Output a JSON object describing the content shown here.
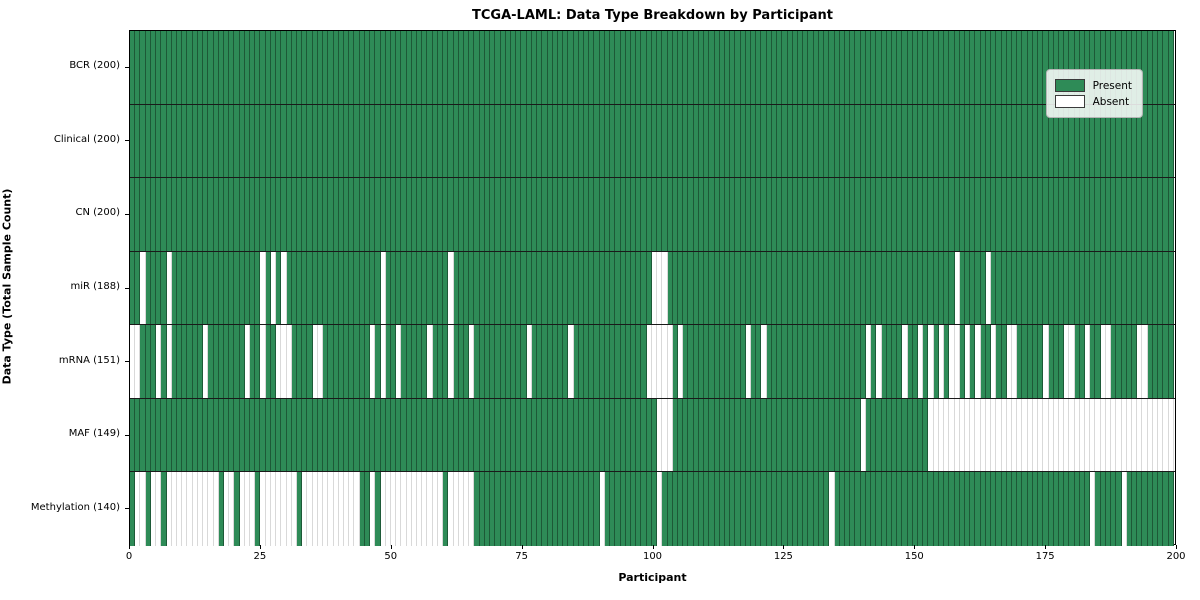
{
  "title": "TCGA-LAML: Data Type Breakdown by Participant",
  "xlabel": "Participant",
  "ylabel": "Data Type (Total Sample Count)",
  "legend": {
    "present_label": "Present",
    "absent_label": "Absent"
  },
  "colors": {
    "present": "#2e8b57",
    "absent": "#ffffff",
    "grid_on_present": "#1d5937",
    "grid_on_absent": "#d9d9d9",
    "row_divider": "#1a1a1a",
    "plot_border": "#000000"
  },
  "x_ticks": [
    0,
    25,
    50,
    75,
    100,
    125,
    150,
    175,
    200
  ],
  "chart_data": {
    "type": "heatmap",
    "title": "TCGA-LAML: Data Type Breakdown by Participant",
    "xlabel": "Participant",
    "ylabel": "Data Type (Total Sample Count)",
    "x_range": [
      0,
      200
    ],
    "n_participants": 200,
    "grid": true,
    "legend_position": "upper right",
    "legend_entries": [
      "Present",
      "Absent"
    ],
    "rows": [
      {
        "name": "BCR",
        "label": "BCR (200)",
        "present_count": 200,
        "absent_indices": []
      },
      {
        "name": "Clinical",
        "label": "Clinical (200)",
        "present_count": 200,
        "absent_indices": []
      },
      {
        "name": "CN",
        "label": "CN (200)",
        "present_count": 200,
        "absent_indices": []
      },
      {
        "name": "miR",
        "label": "miR (188)",
        "present_count": 188,
        "absent_indices": [
          2,
          7,
          25,
          27,
          29,
          48,
          61,
          100,
          101,
          102,
          158,
          164
        ]
      },
      {
        "name": "mRNA",
        "label": "mRNA (151)",
        "present_count": 151,
        "absent_indices": [
          0,
          1,
          5,
          7,
          14,
          22,
          25,
          28,
          29,
          30,
          35,
          36,
          46,
          48,
          51,
          57,
          61,
          65,
          76,
          84,
          99,
          100,
          101,
          102,
          103,
          105,
          118,
          121,
          141,
          143,
          148,
          151,
          153,
          155,
          157,
          158,
          160,
          162,
          165,
          168,
          169,
          175,
          179,
          180,
          183,
          186,
          187,
          193,
          194
        ]
      },
      {
        "name": "MAF",
        "label": "MAF (149)",
        "present_count": 149,
        "absent_indices": [
          101,
          102,
          103,
          140,
          153,
          154,
          155,
          156,
          157,
          158,
          159,
          160,
          161,
          162,
          163,
          164,
          165,
          166,
          167,
          168,
          169,
          170,
          171,
          172,
          173,
          174,
          175,
          176,
          177,
          178,
          179,
          180,
          181,
          182,
          183,
          184,
          185,
          186,
          187,
          188,
          189,
          190,
          191,
          192,
          193,
          194,
          195,
          196,
          197,
          198,
          199
        ]
      },
      {
        "name": "Methylation",
        "label": "Methylation (140)",
        "present_count": 140,
        "absent_indices": [
          1,
          2,
          4,
          5,
          7,
          8,
          9,
          10,
          11,
          12,
          13,
          14,
          15,
          16,
          18,
          19,
          21,
          22,
          23,
          25,
          26,
          27,
          28,
          29,
          30,
          31,
          33,
          34,
          35,
          36,
          37,
          38,
          39,
          40,
          41,
          42,
          43,
          46,
          48,
          49,
          50,
          51,
          52,
          53,
          54,
          55,
          56,
          57,
          58,
          59,
          61,
          62,
          63,
          64,
          65,
          90,
          101,
          134,
          184,
          190
        ]
      }
    ]
  }
}
